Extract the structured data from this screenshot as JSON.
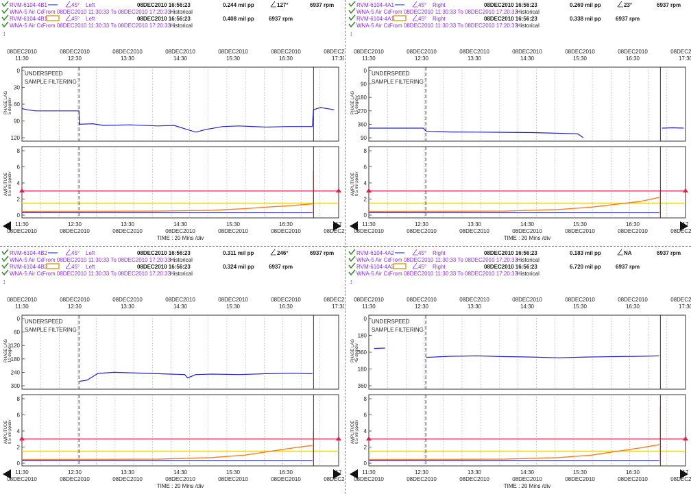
{
  "colors": {
    "purple": "#8a2be2",
    "blue": "#2a3fd0",
    "dark": "#1a1a1a",
    "orange": "#ff7a1a",
    "red": "#e0204a",
    "yellow": "#e8d020",
    "grid": "#b0b0b0",
    "plotblue": "#2020d0"
  },
  "icons": [
    "probe-icon",
    "expand-icon",
    "left-arrow-icon",
    "right-arrow-icon"
  ],
  "common": {
    "asset": "WNA-5  Air Co",
    "range_text": "From 08DEC2010 11:30:33 To 08DEC2010 17:20:33",
    "historical": "Historical",
    "timestamp": "08DEC2010 16:56:23",
    "rpm": "6937 rpm",
    "expand": "↕",
    "top_ticks": [
      "11:30",
      "12:30",
      "13:30",
      "14:30",
      "15:30",
      "16:30",
      "17:30"
    ],
    "date_tick": "08DEC2010",
    "bottom_ticks": [
      "11:30",
      "12:30",
      "13:30",
      "14:30",
      "15:30",
      "16:30",
      "17"
    ],
    "time_label": "TIME : 20 Mins /div",
    "underspeed": "UNDERSPEED",
    "sample_filtering": "SAMPLE FILTERING",
    "amp_label": "AMPLITUDE",
    "amp_scale": "0.5 mil  pp/div",
    "amp_ticks": [
      "8",
      "6",
      "4",
      "2",
      "0"
    ],
    "phase_label": "PHASE LAG"
  },
  "panels": [
    {
      "probe": "RVM-6104-4B1",
      "angle": "45°",
      "side": "Left",
      "amp1": "0.244 mil  pp",
      "phase_val": "127°",
      "amp2": "0.408 mil  pp",
      "phase_scale": "5 deg/div",
      "phase_ticks": [
        "0",
        "30",
        "60",
        "90",
        "120"
      ],
      "phase_series": [
        [
          11.5,
          68
        ],
        [
          11.6,
          70
        ],
        [
          11.75,
          72
        ],
        [
          12.0,
          72
        ],
        [
          12.25,
          72
        ],
        [
          12.55,
          72
        ],
        [
          12.56,
          96
        ],
        [
          12.8,
          95
        ],
        [
          13.0,
          98
        ],
        [
          13.5,
          97
        ],
        [
          14.0,
          99
        ],
        [
          14.3,
          98
        ],
        [
          14.5,
          104
        ],
        [
          14.7,
          110
        ],
        [
          14.9,
          105
        ],
        [
          15.2,
          100
        ],
        [
          15.5,
          99
        ],
        [
          16.0,
          101
        ],
        [
          16.4,
          100
        ],
        [
          16.85,
          100
        ],
        [
          16.87,
          70
        ],
        [
          17.0,
          66
        ],
        [
          17.25,
          70
        ]
      ],
      "orange_ramp": [
        [
          14.0,
          0.5
        ],
        [
          15.0,
          0.6
        ],
        [
          15.6,
          0.8
        ],
        [
          16.0,
          1.0
        ],
        [
          16.5,
          1.2
        ],
        [
          16.85,
          1.4
        ]
      ],
      "spike": 5.5
    },
    {
      "probe": "RVM-6104-4A1",
      "angle": "45°",
      "side": "Right",
      "amp1": "0.269 mil  pp",
      "phase_val": "23°",
      "amp2": "0.338 mil  pp",
      "phase_scale": "15 deg/div",
      "phase_ticks": [
        "0",
        "90",
        "180",
        "270",
        "360",
        "90"
      ],
      "phase_series": [
        [
          11.5,
          360
        ],
        [
          12.0,
          360
        ],
        [
          12.5,
          360
        ],
        [
          12.56,
          380
        ],
        [
          13.0,
          384
        ],
        [
          13.5,
          385
        ],
        [
          14.0,
          386
        ],
        [
          14.5,
          388
        ],
        [
          15.0,
          392
        ],
        [
          15.35,
          396
        ],
        [
          15.45,
          420
        ]
      ],
      "phase_series2": [
        [
          16.9,
          360
        ],
        [
          17.1,
          358
        ],
        [
          17.3,
          360
        ]
      ],
      "orange_ramp": [
        [
          14.0,
          0.5
        ],
        [
          15.0,
          0.7
        ],
        [
          15.6,
          1.0
        ],
        [
          16.0,
          1.3
        ],
        [
          16.5,
          1.7
        ],
        [
          16.85,
          2.2
        ]
      ],
      "spike": 3.0
    },
    {
      "probe": "RVM-6104-4B2",
      "angle": "45°",
      "side": "Left",
      "amp1": "0.311 mil  pp",
      "phase_val": "246°",
      "amp2": "0.324 mil  pp",
      "phase_scale": "10 deg/div",
      "phase_ticks": [
        "0",
        "60",
        "120",
        "180",
        "240",
        "300"
      ],
      "phase_series": [
        [
          12.56,
          280
        ],
        [
          12.7,
          275
        ],
        [
          12.9,
          245
        ],
        [
          13.2,
          240
        ],
        [
          13.5,
          242
        ],
        [
          14.0,
          246
        ],
        [
          14.5,
          250
        ],
        [
          14.55,
          265
        ],
        [
          14.7,
          250
        ],
        [
          15.0,
          248
        ],
        [
          15.5,
          250
        ],
        [
          16.0,
          246
        ],
        [
          16.5,
          244
        ],
        [
          16.85,
          246
        ]
      ],
      "orange_ramp": [
        [
          14.0,
          0.5
        ],
        [
          15.0,
          0.7
        ],
        [
          15.6,
          1.0
        ],
        [
          16.0,
          1.4
        ],
        [
          16.5,
          1.9
        ],
        [
          16.85,
          2.2
        ]
      ],
      "spike": 4.0
    },
    {
      "probe": "RVM-6104-4A2",
      "angle": "45°",
      "side": "Right",
      "amp1": "0.183 mil  pp",
      "phase_val": "NA",
      "amp2": "6.720 mil  pp",
      "phase_scale": "45 deg/div",
      "phase_ticks": [
        "0",
        "180",
        "360",
        "180",
        "360"
      ],
      "phase_series": [
        [
          12.56,
          208
        ],
        [
          13.0,
          202
        ],
        [
          13.5,
          200
        ],
        [
          14.0,
          204
        ],
        [
          14.5,
          206
        ],
        [
          15.0,
          210
        ],
        [
          15.5,
          206
        ],
        [
          16.0,
          204
        ],
        [
          16.5,
          202
        ],
        [
          16.85,
          200
        ]
      ],
      "phase_series2": [
        [
          11.6,
          160
        ],
        [
          11.8,
          158
        ]
      ],
      "orange_ramp": [
        [
          14.0,
          0.5
        ],
        [
          15.0,
          0.7
        ],
        [
          15.6,
          1.0
        ],
        [
          16.0,
          1.4
        ],
        [
          16.5,
          1.9
        ],
        [
          16.85,
          2.3
        ]
      ],
      "spike": 7.0
    }
  ]
}
